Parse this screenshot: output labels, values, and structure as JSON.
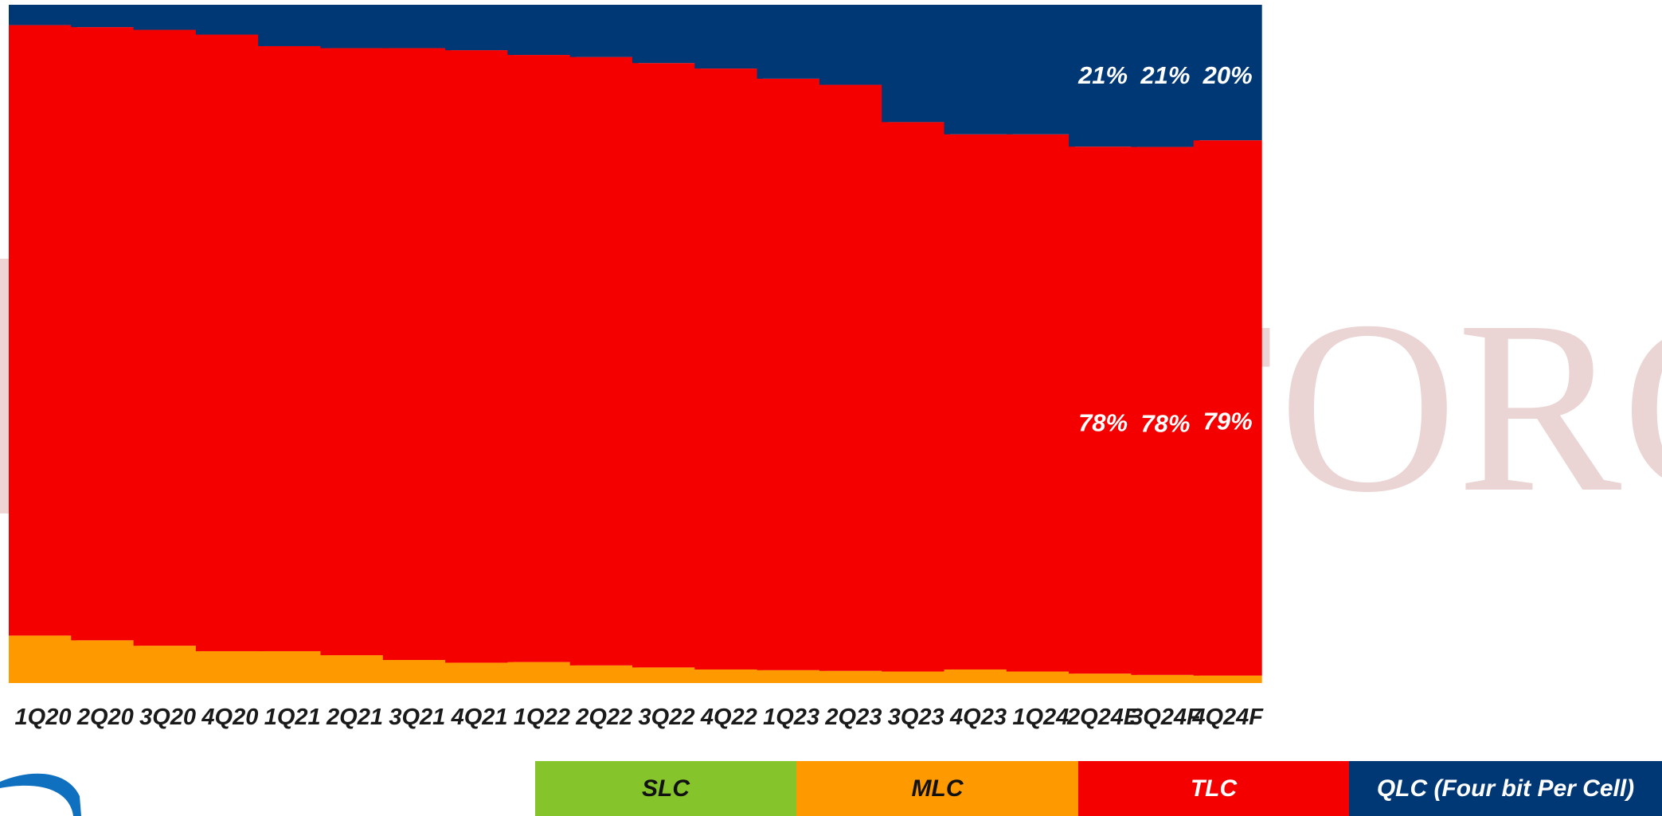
{
  "chart_data": {
    "type": "bar",
    "stacked": true,
    "normalized_percent": true,
    "categories": [
      "1Q20",
      "2Q20",
      "3Q20",
      "4Q20",
      "1Q21",
      "2Q21",
      "3Q21",
      "4Q21",
      "1Q22",
      "2Q22",
      "3Q22",
      "4Q22",
      "1Q23",
      "2Q23",
      "3Q23",
      "4Q23",
      "1Q24",
      "2Q24E",
      "3Q24F",
      "4Q24F"
    ],
    "ylim": [
      0,
      100
    ],
    "series": [
      {
        "name": "SLC",
        "color": "#86c42c",
        "values": [
          0,
          0,
          0,
          0,
          0,
          0,
          0,
          0,
          0,
          0,
          0,
          0,
          0,
          0,
          0,
          0,
          0,
          0,
          0,
          0
        ]
      },
      {
        "name": "MLC",
        "color": "#ff9900",
        "values": [
          7,
          6.3,
          5.5,
          4.7,
          4.7,
          4.1,
          3.4,
          3,
          3.1,
          2.6,
          2.3,
          2,
          1.9,
          1.8,
          1.7,
          2,
          1.7,
          1.4,
          1.2,
          1.1
        ]
      },
      {
        "name": "TLC",
        "color": "#f50000",
        "values": [
          90,
          90.4,
          90.8,
          90.9,
          89.2,
          89.5,
          90.2,
          90.3,
          89.5,
          89.7,
          89.1,
          88.6,
          87.2,
          86.4,
          81,
          78.9,
          79.2,
          78,
          78,
          79
        ]
      },
      {
        "name": "QLC (Four bit Per Cell)",
        "color": "#003876",
        "values": [
          3,
          3.3,
          3.7,
          4.4,
          6.1,
          6.4,
          6.4,
          6.7,
          7.4,
          7.7,
          8.6,
          9.4,
          10.9,
          11.8,
          17.3,
          19.1,
          19.1,
          21,
          21,
          20
        ]
      }
    ],
    "data_labels": [
      {
        "category": "2Q24E",
        "series": "QLC (Four bit Per Cell)",
        "text": "21%"
      },
      {
        "category": "3Q24F",
        "series": "QLC (Four bit Per Cell)",
        "text": "21%"
      },
      {
        "category": "4Q24F",
        "series": "QLC (Four bit Per Cell)",
        "text": "20%"
      },
      {
        "category": "2Q24E",
        "series": "TLC",
        "text": "78%"
      },
      {
        "category": "3Q24F",
        "series": "TLC",
        "text": "78%"
      },
      {
        "category": "4Q24F",
        "series": "TLC",
        "text": "79%"
      }
    ],
    "legend": {
      "placement": "bottom"
    },
    "grid": false
  },
  "watermark": {
    "text": "TRENDFORCE"
  }
}
